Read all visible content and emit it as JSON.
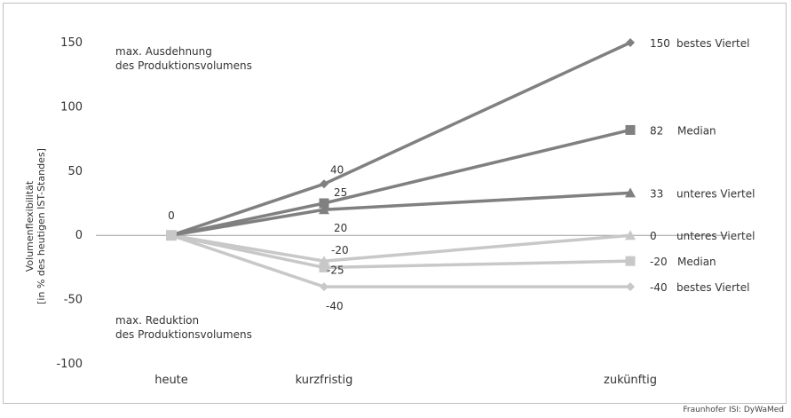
{
  "chart_data": {
    "type": "line",
    "categories": [
      "heute",
      "kurzfristig",
      "zukünftig"
    ],
    "ylabel_line1": "Volumenflexibilität",
    "ylabel_line2": "[in % des heutigen IST-Standes]",
    "ylim": [
      -100,
      150
    ],
    "yticks": [
      150,
      100,
      50,
      0,
      -50,
      -100
    ],
    "grid": false,
    "series": [
      {
        "name": "bestes Viertel",
        "values": [
          0,
          40,
          150
        ],
        "marker": "diamond",
        "color": "#808080"
      },
      {
        "name": "Median",
        "values": [
          0,
          25,
          82
        ],
        "marker": "square",
        "color": "#808080"
      },
      {
        "name": "unteres Viertel",
        "values": [
          0,
          20,
          33
        ],
        "marker": "triangle",
        "color": "#808080"
      },
      {
        "name": "unteres Viertel",
        "values": [
          0,
          -20,
          0
        ],
        "marker": "triangle",
        "color": "#c8c8c8"
      },
      {
        "name": "Median",
        "values": [
          0,
          -25,
          -20
        ],
        "marker": "square",
        "color": "#c8c8c8"
      },
      {
        "name": "bestes Viertel",
        "values": [
          0,
          -40,
          -40
        ],
        "marker": "diamond",
        "color": "#c8c8c8"
      }
    ],
    "start_label": "0",
    "annotations": {
      "top": [
        "max. Ausdehnung",
        "des Produktionsvolumens"
      ],
      "bottom": [
        "max. Reduktion",
        "des Produktionsvolumens"
      ]
    }
  },
  "credit": "Fraunhofer ISI: DyWaMed"
}
